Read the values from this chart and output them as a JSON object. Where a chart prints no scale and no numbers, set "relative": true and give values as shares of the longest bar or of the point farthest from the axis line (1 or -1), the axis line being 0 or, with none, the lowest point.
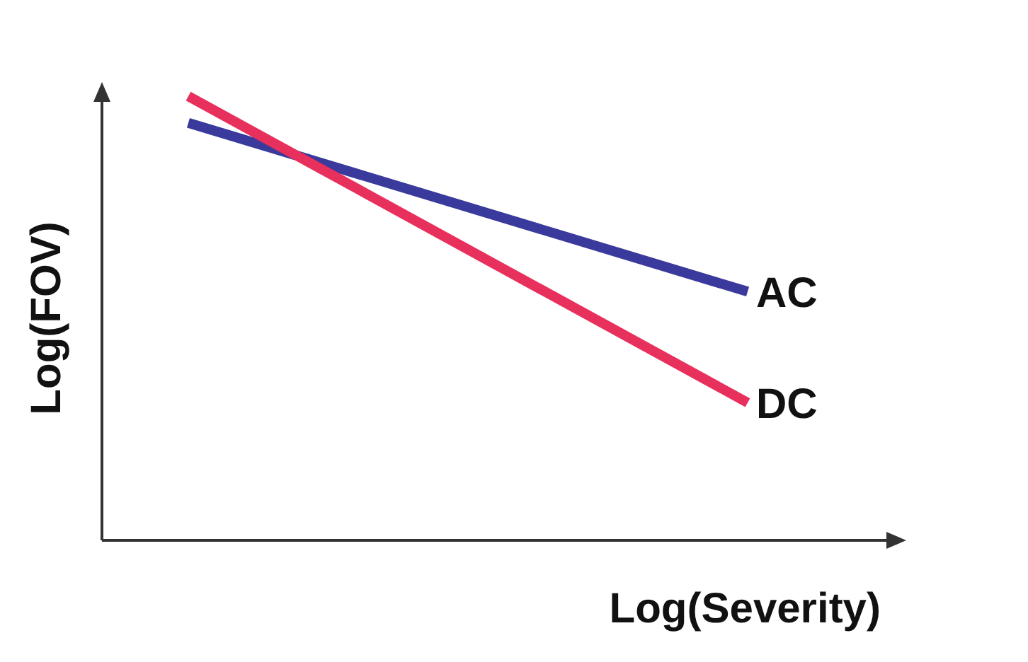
{
  "chart_data": {
    "type": "line",
    "relative": true,
    "xlabel": "Log(Severity)",
    "ylabel": "Log(FOV)",
    "categories": [
      null,
      null
    ],
    "series": [
      {
        "name": "AC",
        "color": "#3a3a9c",
        "values": [
          0.94,
          0.56
        ]
      },
      {
        "name": "DC",
        "color": "#e8305c",
        "values": [
          1,
          0.31
        ]
      }
    ]
  }
}
